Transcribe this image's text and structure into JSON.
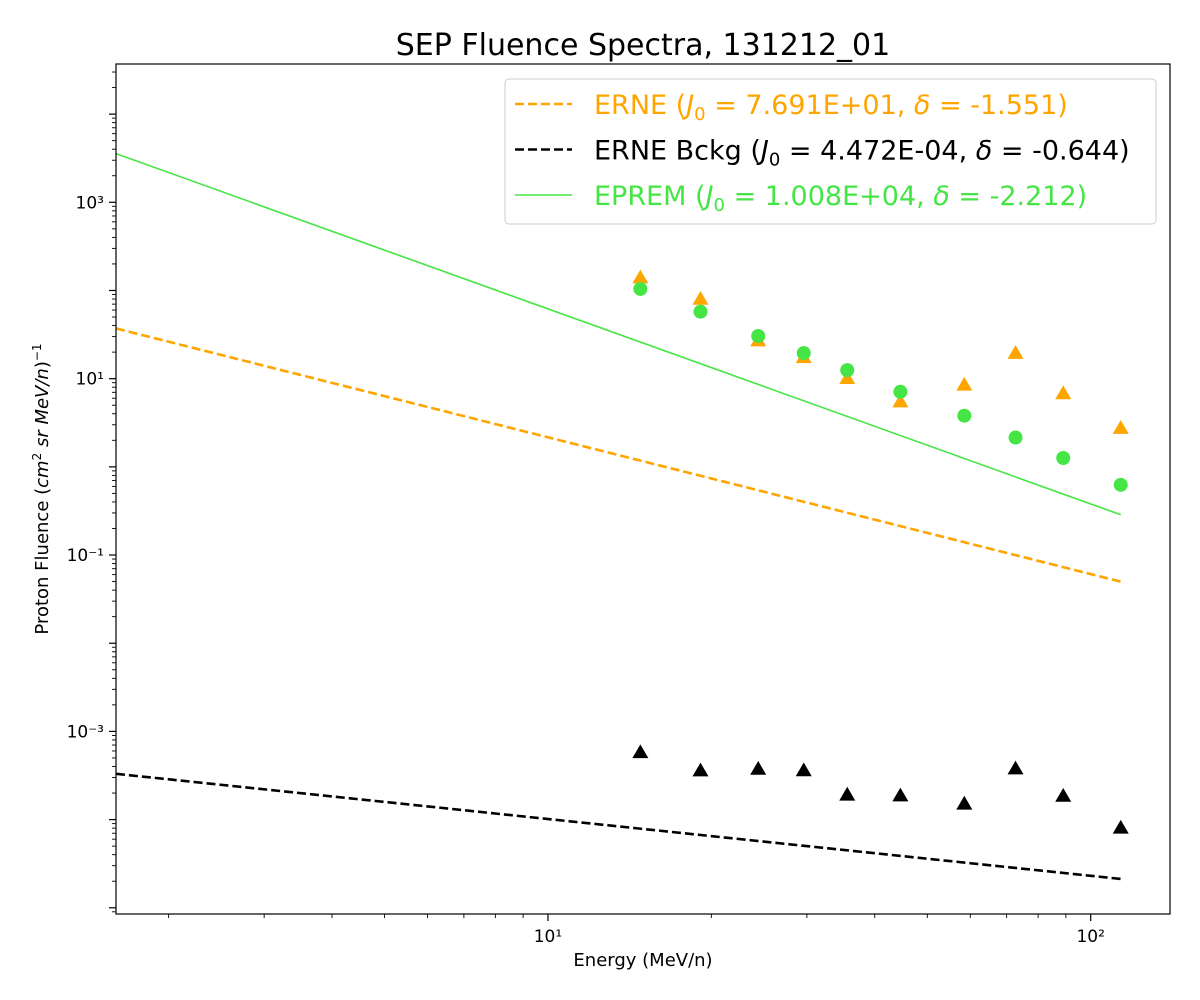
{
  "chart_data": {
    "type": "scatter",
    "title": "SEP Fluence Spectra, 131212_01",
    "xlabel": "Energy (MeV/n)",
    "ylabel": "Proton Fluence (cm² sr MeV/n)⁻¹",
    "xscale": "log",
    "yscale": "log",
    "xlim": [
      1.6,
      140
    ],
    "ylim": [
      8.5e-06,
      37000
    ],
    "x_ticks": [
      {
        "value": 10,
        "label": "10¹"
      },
      {
        "value": 100,
        "label": "10²"
      }
    ],
    "y_ticks": [
      {
        "value": 0.001,
        "label": "10⁻³"
      },
      {
        "value": 0.1,
        "label": "10⁻¹"
      },
      {
        "value": 10,
        "label": "10¹"
      },
      {
        "value": 1000,
        "label": "10³"
      }
    ],
    "legend_position": "top-right",
    "series": [
      {
        "name": "ERNE",
        "legend": {
          "prefix": "ERNE (",
          "j0": "7.691E+01",
          "delta": "-1.551"
        },
        "color": "#FFA500",
        "marker": "triangle",
        "line_style": "dashed",
        "x": [
          14.8,
          19.1,
          24.4,
          29.6,
          35.6,
          44.6,
          58.5,
          72.7,
          89.0,
          113.6
        ],
        "y": [
          140,
          80,
          27,
          17.5,
          10.1,
          5.5,
          8.5,
          19.5,
          6.8,
          2.75
        ],
        "fit": {
          "J0": 76.91,
          "delta": -1.551,
          "x_range": [
            1.6,
            113.6
          ]
        }
      },
      {
        "name": "ERNE Bckg",
        "legend": {
          "prefix": "ERNE Bckg (",
          "j0": "4.472E-04",
          "delta": "-0.644"
        },
        "color": "#000000",
        "marker": "triangle",
        "line_style": "dashed",
        "x": [
          14.8,
          19.1,
          24.4,
          29.6,
          35.6,
          44.6,
          58.5,
          72.7,
          89.0,
          113.6
        ],
        "y": [
          0.000578,
          0.000359,
          0.000375,
          0.00036,
          0.000191,
          0.000187,
          0.000151,
          0.000378,
          0.000185,
          8.06e-05
        ],
        "fit": {
          "J0": 0.0004472,
          "delta": -0.644,
          "x_range": [
            1.6,
            113.6
          ]
        }
      },
      {
        "name": "EPREM",
        "legend": {
          "prefix": "EPREM (",
          "j0": "1.008E+04",
          "delta": "-2.212"
        },
        "color": "#44E544",
        "marker": "circle",
        "line_style": "solid",
        "x": [
          14.8,
          19.1,
          24.4,
          29.6,
          35.6,
          44.6,
          58.5,
          72.7,
          89.0,
          113.6
        ],
        "y": [
          104,
          57.5,
          30.5,
          19.5,
          12.5,
          7.1,
          3.8,
          2.15,
          1.26,
          0.625
        ],
        "fit": {
          "J0": 10080,
          "delta": -2.212,
          "x_range": [
            1.6,
            113.6
          ]
        }
      }
    ]
  }
}
